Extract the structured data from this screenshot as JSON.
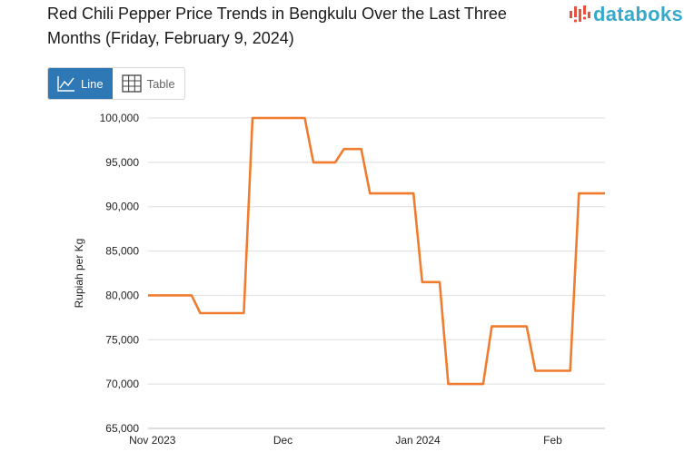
{
  "header": {
    "title": "Red Chili Pepper Price Trends in Bengkulu Over the Last Three Months (Friday, February 9, 2024)",
    "brand": "databoks"
  },
  "view_toggle": {
    "line_label": "Line",
    "table_label": "Table",
    "selected": "Line"
  },
  "colors": {
    "line": "#f07c2f",
    "accent": "#2e79b5",
    "brand": "#39a9c9",
    "grid": "#dedede"
  },
  "chart_data": {
    "type": "line",
    "ylabel": "Rupiah per Kg",
    "xlabel": "",
    "ylim": [
      65000,
      100000
    ],
    "y_ticks": [
      65000,
      70000,
      75000,
      80000,
      85000,
      90000,
      95000,
      100000
    ],
    "y_tick_labels": [
      "65,000",
      "70,000",
      "75,000",
      "80,000",
      "85,000",
      "90,000",
      "95,000",
      "100,000"
    ],
    "x_ticks": [
      {
        "label": "Nov 2023",
        "day": 1
      },
      {
        "label": "Dec",
        "day": 31
      },
      {
        "label": "Jan 2024",
        "day": 62
      },
      {
        "label": "Feb",
        "day": 93
      }
    ],
    "xlim_days": [
      0,
      105
    ],
    "series": [
      {
        "name": "Red Chili Pepper",
        "points": [
          {
            "day": 0,
            "value": 80000
          },
          {
            "day": 10,
            "value": 80000
          },
          {
            "day": 12,
            "value": 78000
          },
          {
            "day": 22,
            "value": 78000
          },
          {
            "day": 24,
            "value": 100000
          },
          {
            "day": 36,
            "value": 100000
          },
          {
            "day": 38,
            "value": 95000
          },
          {
            "day": 43,
            "value": 95000
          },
          {
            "day": 45,
            "value": 96500
          },
          {
            "day": 49,
            "value": 96500
          },
          {
            "day": 51,
            "value": 91500
          },
          {
            "day": 61,
            "value": 91500
          },
          {
            "day": 63,
            "value": 81500
          },
          {
            "day": 67,
            "value": 81500
          },
          {
            "day": 69,
            "value": 70000
          },
          {
            "day": 77,
            "value": 70000
          },
          {
            "day": 79,
            "value": 76500
          },
          {
            "day": 87,
            "value": 76500
          },
          {
            "day": 89,
            "value": 71500
          },
          {
            "day": 97,
            "value": 71500
          },
          {
            "day": 99,
            "value": 91500
          },
          {
            "day": 105,
            "value": 91500
          }
        ]
      }
    ]
  }
}
